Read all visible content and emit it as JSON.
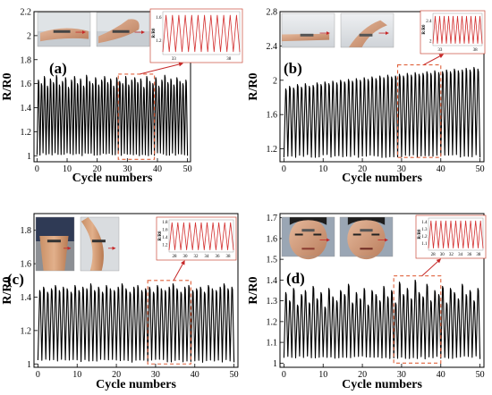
{
  "chart_data": [
    {
      "type": "line",
      "panel_label": "(a)",
      "xlabel": "Cycle numbers",
      "ylabel": "R/R0",
      "xlim": [
        -1,
        51
      ],
      "ylim": [
        0.95,
        2.2
      ],
      "xticks": [
        0,
        10,
        20,
        30,
        40,
        50
      ],
      "yticks": [
        1.0,
        1.2,
        1.4,
        1.6,
        1.8,
        2.0,
        2.2
      ],
      "grid": false,
      "series": [
        {
          "name": "",
          "color": "#000000",
          "cycles": 50,
          "baseline": 1.0,
          "peaks": [
            1.63,
            1.6,
            1.66,
            1.58,
            1.64,
            1.61,
            1.67,
            1.59,
            1.62,
            1.65,
            1.57,
            1.63,
            1.66,
            1.6,
            1.64,
            1.58,
            1.67,
            1.62,
            1.6,
            1.65,
            1.59,
            1.63,
            1.66,
            1.61,
            1.64,
            1.58,
            1.65,
            1.62,
            1.6,
            1.66,
            1.59,
            1.63,
            1.65,
            1.61,
            1.64,
            1.57,
            1.66,
            1.62,
            1.6,
            1.65,
            1.58,
            1.63,
            1.67,
            1.61,
            1.64,
            1.59,
            1.65,
            1.62,
            1.6,
            1.63
          ]
        }
      ],
      "zoom_region": {
        "x": [
          27,
          39
        ],
        "y": [
          0.97,
          1.68
        ]
      },
      "inset": {
        "type": "line",
        "color": "#d32f2f",
        "xticks": [
          33,
          38
        ],
        "yticks": [
          1.2,
          1.6
        ],
        "ylabel": "R/R0",
        "ylim": [
          0.95,
          1.7
        ],
        "cycles": 12
      },
      "photos": 2
    },
    {
      "type": "line",
      "panel_label": "(b)",
      "xlabel": "Cycle numbers",
      "ylabel": "R/R0",
      "xlim": [
        -1,
        51
      ],
      "ylim": [
        1.05,
        2.8
      ],
      "xticks": [
        0,
        10,
        20,
        30,
        40,
        50
      ],
      "yticks": [
        1.2,
        1.6,
        2.0,
        2.4,
        2.8
      ],
      "grid": false,
      "series": [
        {
          "name": "",
          "color": "#000000",
          "cycles": 50,
          "baseline": 1.1,
          "peaks": [
            1.9,
            1.93,
            1.91,
            1.95,
            1.92,
            1.96,
            1.93,
            1.94,
            1.97,
            1.95,
            1.98,
            1.96,
            1.99,
            1.97,
            2.0,
            1.98,
            2.01,
            1.99,
            2.02,
            2.0,
            2.03,
            2.01,
            2.04,
            2.02,
            2.05,
            2.03,
            2.06,
            2.04,
            2.05,
            2.07,
            2.05,
            2.08,
            2.06,
            2.09,
            2.07,
            2.08,
            2.1,
            2.08,
            2.11,
            2.09,
            2.1,
            2.12,
            2.1,
            2.13,
            2.11,
            2.12,
            2.14,
            2.12,
            2.15,
            2.13
          ]
        }
      ],
      "zoom_region": {
        "x": [
          29,
          40
        ],
        "y": [
          1.1,
          2.18
        ]
      },
      "inset": {
        "type": "line",
        "color": "#d32f2f",
        "xticks": [
          33,
          38
        ],
        "yticks": [
          2.0,
          2.4
        ],
        "ylabel": "R/R0",
        "ylim": [
          1.9,
          2.55
        ],
        "cycles": 11
      },
      "photos": 2
    },
    {
      "type": "line",
      "panel_label": "(c)",
      "xlabel": "Cycle numbers",
      "ylabel": "R/R0",
      "xlim": [
        -1,
        51
      ],
      "ylim": [
        0.98,
        1.9
      ],
      "xticks": [
        0,
        10,
        20,
        30,
        40,
        50
      ],
      "yticks": [
        1.0,
        1.2,
        1.4,
        1.6,
        1.8
      ],
      "grid": false,
      "series": [
        {
          "name": "",
          "color": "#000000",
          "cycles": 50,
          "baseline": 1.01,
          "peaks": [
            1.44,
            1.46,
            1.43,
            1.45,
            1.47,
            1.44,
            1.46,
            1.45,
            1.43,
            1.47,
            1.44,
            1.46,
            1.45,
            1.48,
            1.44,
            1.46,
            1.43,
            1.47,
            1.45,
            1.44,
            1.46,
            1.48,
            1.45,
            1.43,
            1.46,
            1.47,
            1.44,
            1.45,
            1.46,
            1.43,
            1.47,
            1.45,
            1.44,
            1.46,
            1.48,
            1.45,
            1.43,
            1.46,
            1.47,
            1.44,
            1.45,
            1.46,
            1.43,
            1.47,
            1.45,
            1.44,
            1.46,
            1.48,
            1.45,
            1.46
          ]
        }
      ],
      "zoom_region": {
        "x": [
          28,
          39
        ],
        "y": [
          1.0,
          1.5
        ]
      },
      "inset": {
        "type": "line",
        "color": "#d32f2f",
        "xticks": [
          28,
          30,
          32,
          34,
          36,
          38
        ],
        "yticks": [
          1.2,
          1.4,
          1.6,
          1.8
        ],
        "ylabel": "R/R0",
        "ylim": [
          1.0,
          1.85
        ],
        "cycles": 11
      },
      "photos": 2
    },
    {
      "type": "line",
      "panel_label": "(d)",
      "xlabel": "Cycle numbers",
      "ylabel": "R/R0",
      "xlim": [
        -1,
        51
      ],
      "ylim": [
        0.98,
        1.72
      ],
      "xticks": [
        0,
        10,
        20,
        30,
        40,
        50
      ],
      "yticks": [
        1.0,
        1.1,
        1.2,
        1.3,
        1.4,
        1.5,
        1.6,
        1.7
      ],
      "grid": false,
      "series": [
        {
          "name": "",
          "color": "#000000",
          "cycles": 50,
          "baseline": 1.02,
          "peaks": [
            1.34,
            1.3,
            1.36,
            1.28,
            1.33,
            1.35,
            1.29,
            1.37,
            1.31,
            1.34,
            1.27,
            1.36,
            1.32,
            1.3,
            1.35,
            1.33,
            1.38,
            1.29,
            1.34,
            1.31,
            1.36,
            1.28,
            1.35,
            1.33,
            1.3,
            1.37,
            1.32,
            1.35,
            1.29,
            1.39,
            1.33,
            1.36,
            1.31,
            1.4,
            1.34,
            1.32,
            1.38,
            1.3,
            1.35,
            1.33,
            1.37,
            1.29,
            1.36,
            1.34,
            1.31,
            1.38,
            1.33,
            1.35,
            1.3,
            1.36
          ]
        }
      ],
      "zoom_region": {
        "x": [
          28,
          40
        ],
        "y": [
          1.0,
          1.42
        ]
      },
      "inset": {
        "type": "line",
        "color": "#d32f2f",
        "xticks": [
          28,
          30,
          32,
          34,
          36,
          38
        ],
        "yticks": [
          1.1,
          1.2,
          1.3,
          1.4
        ],
        "ylabel": "R/R0",
        "ylim": [
          1.0,
          1.45
        ],
        "cycles": 11
      },
      "photos": 2
    }
  ]
}
